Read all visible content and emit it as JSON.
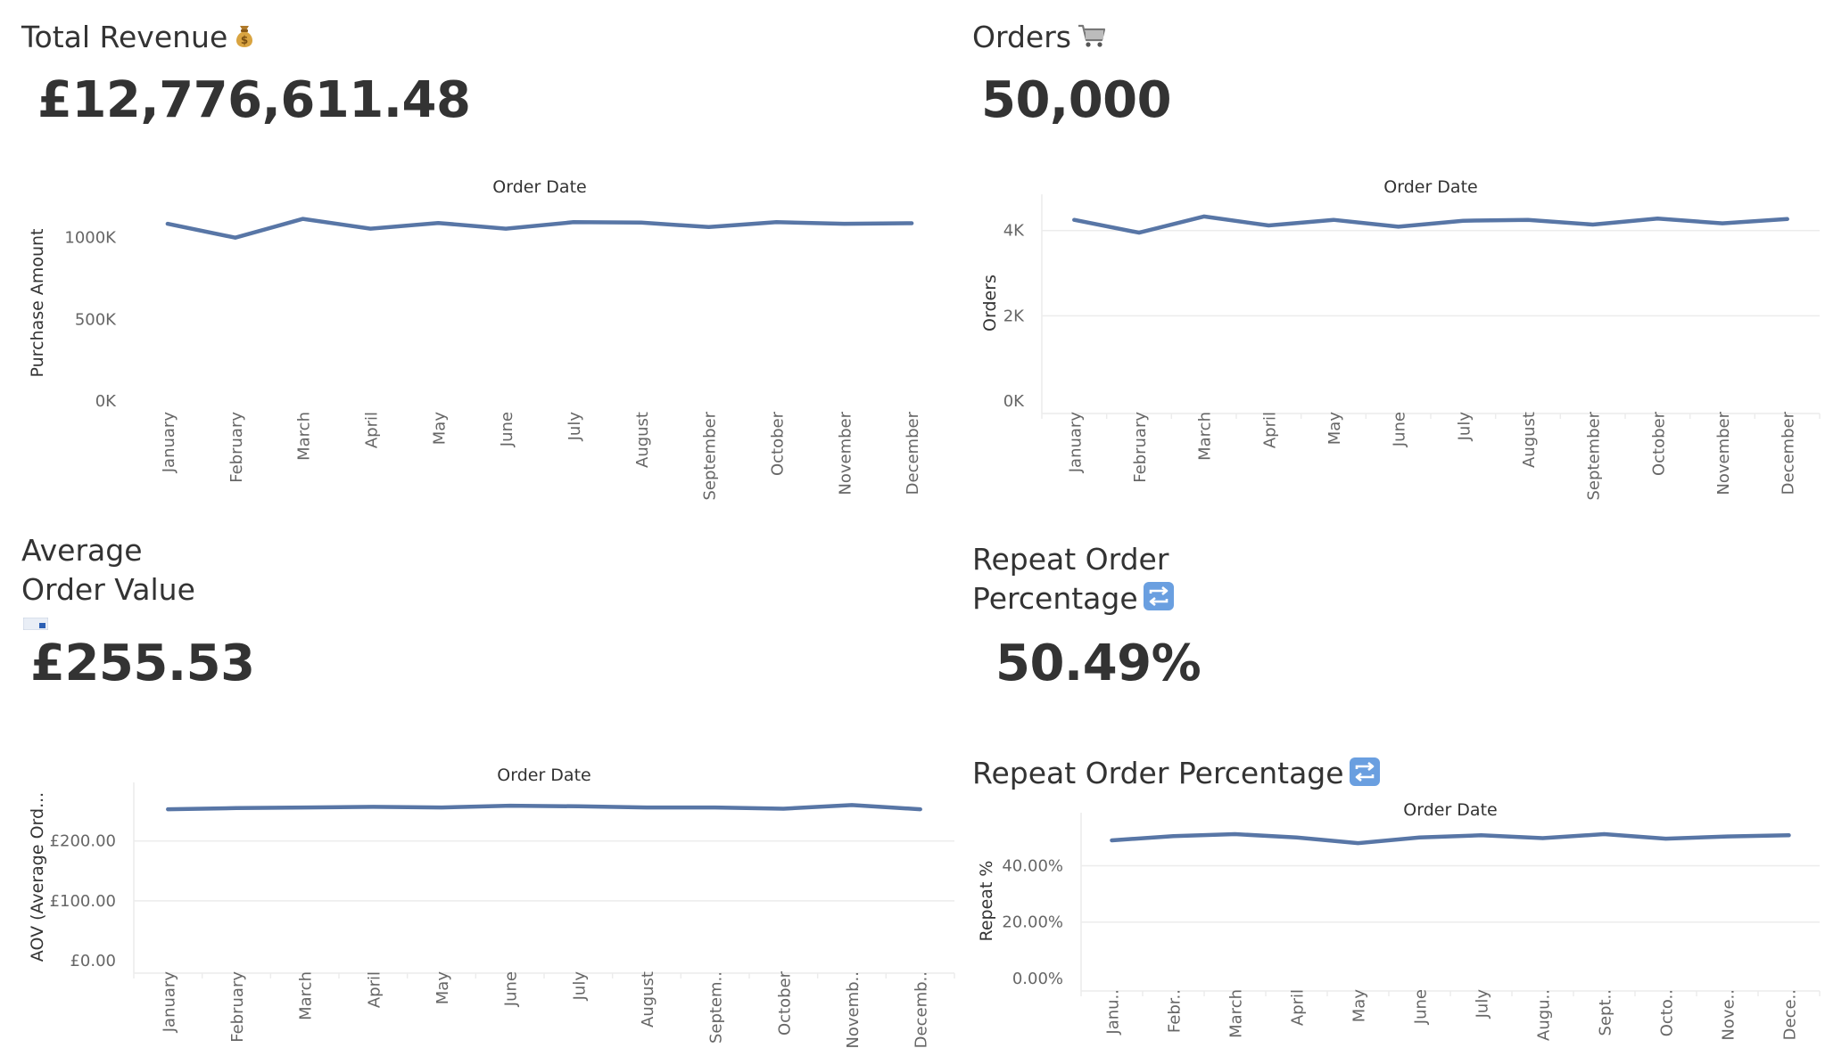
{
  "kpis": {
    "revenue": {
      "title": "Total Revenue",
      "value": "£12,776,611.48",
      "icon": "money-bag-icon"
    },
    "orders": {
      "title": "Orders",
      "value": "50,000",
      "icon": "shopping-cart-icon"
    },
    "aov": {
      "title_line1": "Average",
      "title_line2": "Order Value",
      "value": "£255.53",
      "icon": "card-icon"
    },
    "repeat": {
      "title_line1": "Repeat Order",
      "title_line2": "Percentage",
      "value": "50.49%",
      "icon": "repeat-icon"
    }
  },
  "repeat_chart_title": "Repeat Order Percentage",
  "colors": {
    "line": "#5876a6",
    "text": "#333333",
    "tick": "#666666",
    "grid": "#ececec"
  },
  "chart_data": [
    {
      "id": "revenue",
      "type": "line",
      "title": "",
      "xlabel": "Order Date",
      "ylabel": "Purchase Amount",
      "categories": [
        "January",
        "February",
        "March",
        "April",
        "May",
        "June",
        "July",
        "August",
        "September",
        "October",
        "November",
        "December"
      ],
      "tick_labels": [
        "January",
        "February",
        "March",
        "April",
        "May",
        "June",
        "July",
        "August",
        "September",
        "October",
        "November",
        "December"
      ],
      "values": [
        1085000,
        1000000,
        1115000,
        1055000,
        1090000,
        1055000,
        1095000,
        1092000,
        1065000,
        1095000,
        1085000,
        1088000
      ],
      "ylim": [
        0,
        1200000
      ],
      "yticks": [
        {
          "v": 0,
          "label": "0K"
        },
        {
          "v": 500000,
          "label": "500K"
        },
        {
          "v": 1000000,
          "label": "1000K"
        }
      ],
      "grid": false
    },
    {
      "id": "orders",
      "type": "line",
      "title": "",
      "xlabel": "Order Date",
      "ylabel": "Orders",
      "categories": [
        "January",
        "February",
        "March",
        "April",
        "May",
        "June",
        "July",
        "August",
        "September",
        "October",
        "November",
        "December"
      ],
      "tick_labels": [
        "January",
        "February",
        "March",
        "April",
        "May",
        "June",
        "July",
        "August",
        "September",
        "October",
        "November",
        "December"
      ],
      "values": [
        4250,
        3950,
        4330,
        4120,
        4250,
        4090,
        4230,
        4250,
        4140,
        4280,
        4170,
        4270
      ],
      "ylim": [
        0,
        4600
      ],
      "yticks": [
        {
          "v": 0,
          "label": "0K"
        },
        {
          "v": 2000,
          "label": "2K"
        },
        {
          "v": 4000,
          "label": "4K"
        }
      ],
      "grid": true
    },
    {
      "id": "aov",
      "type": "line",
      "title": "",
      "xlabel": "Order Date",
      "ylabel": "AOV (Average Ord...",
      "categories": [
        "January",
        "February",
        "March",
        "April",
        "May",
        "June",
        "July",
        "August",
        "September",
        "October",
        "November",
        "December"
      ],
      "tick_labels": [
        "January",
        "February",
        "March",
        "April",
        "May",
        "June",
        "July",
        "August",
        "Septem..",
        "October",
        "Novemb..",
        "Decemb.."
      ],
      "values": [
        253,
        255,
        256,
        257,
        256,
        259,
        258,
        256,
        256,
        254,
        260,
        253
      ],
      "ylim": [
        0,
        280
      ],
      "yticks": [
        {
          "v": 0,
          "label": "£0.00"
        },
        {
          "v": 100,
          "label": "£100.00"
        },
        {
          "v": 200,
          "label": "£200.00"
        }
      ],
      "grid": true
    },
    {
      "id": "repeat",
      "type": "line",
      "title": "Repeat Order Percentage",
      "xlabel": "Order Date",
      "ylabel": "Repeat %",
      "categories": [
        "January",
        "February",
        "March",
        "April",
        "May",
        "June",
        "July",
        "August",
        "September",
        "October",
        "November",
        "December"
      ],
      "tick_labels": [
        "Janu..",
        "Febr..",
        "March",
        "April",
        "May",
        "June",
        "July",
        "Augu..",
        "Sept..",
        "Octo..",
        "Nove..",
        "Dece.."
      ],
      "values": [
        49.0,
        50.5,
        51.2,
        50.0,
        48.0,
        50.0,
        50.8,
        49.8,
        51.2,
        49.6,
        50.4,
        50.8
      ],
      "ylim": [
        0,
        55
      ],
      "yticks": [
        {
          "v": 0,
          "label": "0.00%"
        },
        {
          "v": 20,
          "label": "20.00%"
        },
        {
          "v": 40,
          "label": "40.00%"
        }
      ],
      "grid": true
    }
  ]
}
